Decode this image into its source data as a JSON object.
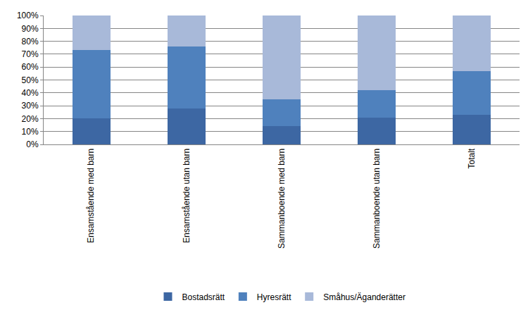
{
  "chart_data": {
    "type": "bar",
    "stacked": true,
    "grid": true,
    "legend": "bottom",
    "categories": [
      "Ensamstående med barn",
      "Ensamstående utan barn",
      "Sammanboende med barn",
      "Sammanboende utan barn",
      "Totalt"
    ],
    "series": [
      {
        "name": "Bostadsrätt",
        "color": "#3d67a3",
        "values": [
          20,
          28,
          14,
          21,
          23
        ]
      },
      {
        "name": "Hyresrätt",
        "color": "#4f81bd",
        "values": [
          53,
          48,
          21,
          21,
          34
        ]
      },
      {
        "name": "Småhus/Äganderätter",
        "color": "#a8b9d9",
        "values": [
          27,
          24,
          65,
          58,
          43
        ]
      }
    ],
    "ylim": [
      0,
      100
    ],
    "yticks": [
      {
        "value": 0,
        "label": "0%"
      },
      {
        "value": 10,
        "label": "10%"
      },
      {
        "value": 20,
        "label": "20%"
      },
      {
        "value": 30,
        "label": "30%"
      },
      {
        "value": 40,
        "label": "40%"
      },
      {
        "value": 50,
        "label": "50%"
      },
      {
        "value": 60,
        "label": "60%"
      },
      {
        "value": 70,
        "label": "70%"
      },
      {
        "value": 80,
        "label": "80%"
      },
      {
        "value": 90,
        "label": "90%"
      },
      {
        "value": 100,
        "label": "100%"
      }
    ]
  }
}
